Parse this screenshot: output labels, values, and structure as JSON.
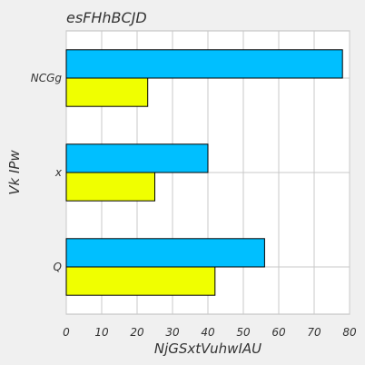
{
  "chart_data": {
    "type": "bar",
    "orientation": "horizontal",
    "title": "esFHhBCJD",
    "xlabel": "NjGSxtVuhwIAU",
    "ylabel": "Vk  IPw",
    "categories": [
      "Q",
      "x",
      "NCGg"
    ],
    "series": [
      {
        "color": "#f0ff00",
        "values": [
          42,
          25,
          23
        ]
      },
      {
        "color": "#00bfff",
        "values": [
          56,
          40,
          78
        ]
      }
    ],
    "xlim": [
      0,
      80
    ],
    "xticks": [
      0,
      10,
      20,
      30,
      40,
      50,
      60,
      70,
      80
    ],
    "grid": true,
    "legend": "none"
  }
}
